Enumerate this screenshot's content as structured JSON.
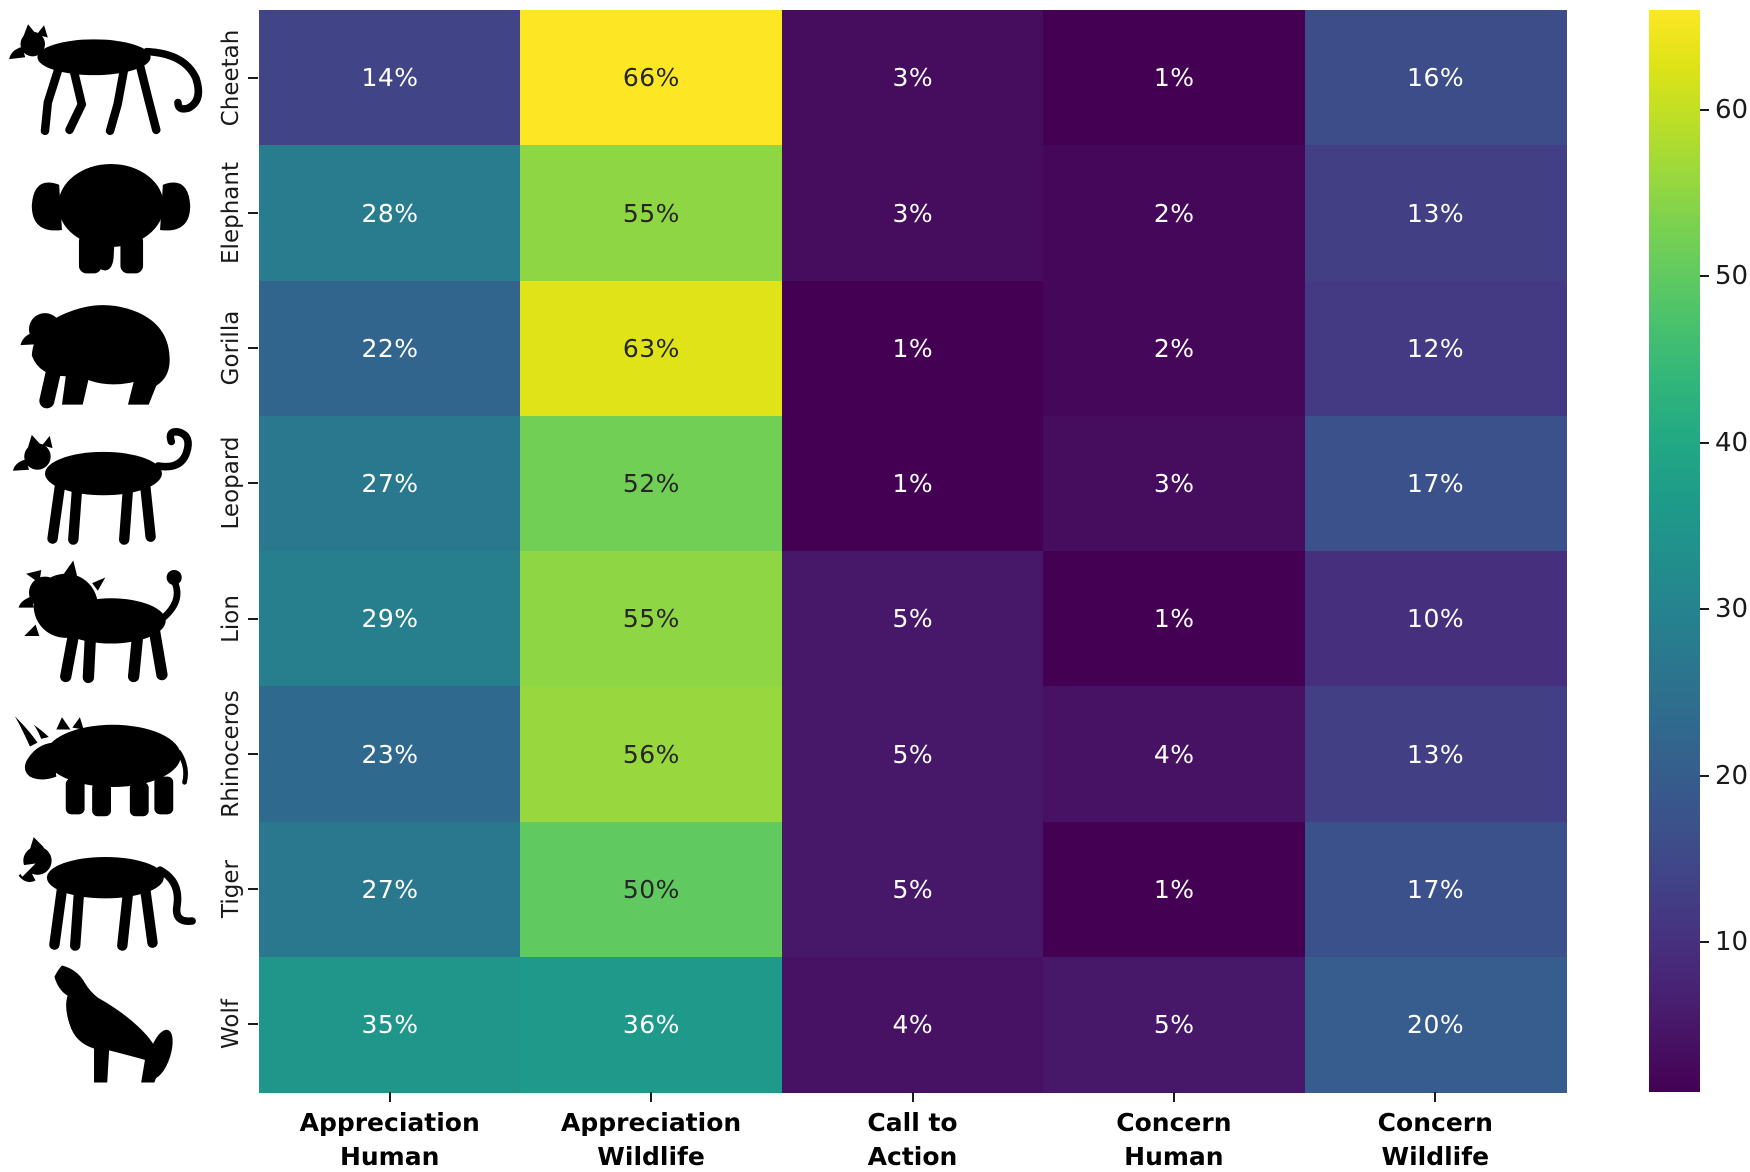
{
  "chart_data": {
    "type": "heatmap",
    "title": "",
    "rows": [
      "Cheetah",
      "Elephant",
      "Gorilla",
      "Leopard",
      "Lion",
      "Rhinoceros",
      "Tiger",
      "Wolf"
    ],
    "row_icons": [
      "cheetah",
      "elephant",
      "gorilla",
      "leopard",
      "lion",
      "rhinoceros",
      "tiger",
      "wolf"
    ],
    "columns": [
      [
        "Appreciation",
        "Human"
      ],
      [
        "Appreciation",
        "Wildlife"
      ],
      [
        "Call to",
        "Action"
      ],
      [
        "Concern",
        "Human"
      ],
      [
        "Concern",
        "Wildlife"
      ]
    ],
    "values": [
      [
        14,
        66,
        3,
        1,
        16
      ],
      [
        28,
        55,
        3,
        2,
        13
      ],
      [
        22,
        63,
        1,
        2,
        12
      ],
      [
        27,
        52,
        1,
        3,
        17
      ],
      [
        29,
        55,
        5,
        1,
        10
      ],
      [
        23,
        56,
        5,
        4,
        13
      ],
      [
        27,
        50,
        5,
        1,
        17
      ],
      [
        35,
        36,
        4,
        5,
        20
      ]
    ],
    "value_suffix": "%",
    "colormap": "viridis",
    "vmin": 1,
    "vmax": 66,
    "colorbar_ticks": [
      10,
      20,
      30,
      40,
      50,
      60
    ],
    "colorbar_position": "right",
    "grid": false
  },
  "colors": {
    "background": "#ffffff",
    "annotation_light": "#ffffff",
    "annotation_dark": "#262626",
    "tick_color": "#1a1a1a",
    "label_color": "#000000",
    "silhouette": "#000000",
    "viridis_min": "#440154",
    "viridis_max": "#fde725"
  }
}
